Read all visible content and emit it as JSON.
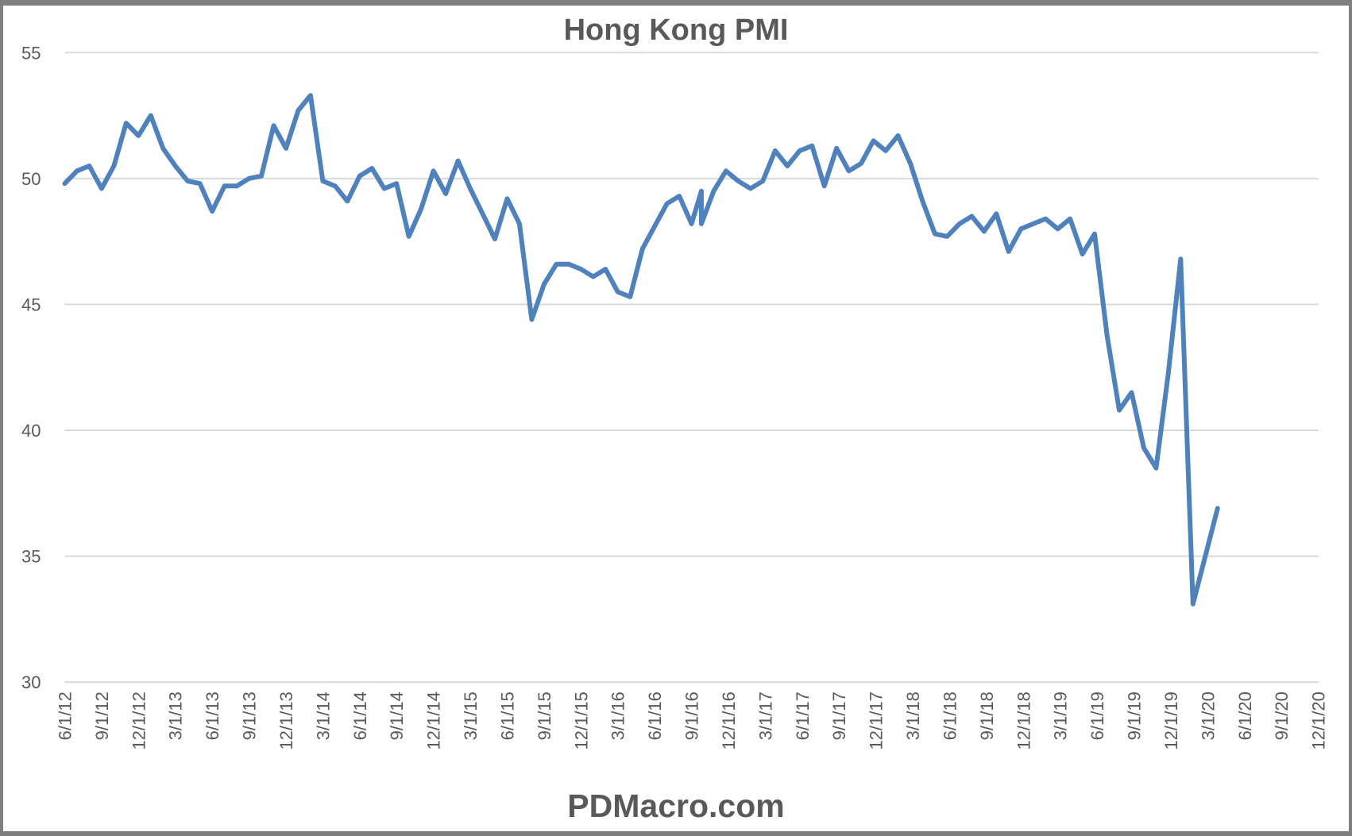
{
  "chart_data": {
    "type": "line",
    "title": "Hong Kong PMI",
    "xlabel": "",
    "ylabel": "",
    "ylim": [
      30,
      55
    ],
    "yticks": [
      30,
      35,
      40,
      45,
      50,
      55
    ],
    "grid": true,
    "legend": null,
    "line_color": "#4f81bd",
    "xtick_labels": [
      "6/1/12",
      "9/1/12",
      "12/1/12",
      "3/1/13",
      "6/1/13",
      "9/1/13",
      "12/1/13",
      "3/1/14",
      "6/1/14",
      "9/1/14",
      "12/1/14",
      "3/1/15",
      "6/1/15",
      "9/1/15",
      "12/1/15",
      "3/1/16",
      "6/1/16",
      "9/1/16",
      "12/1/16",
      "3/1/17",
      "6/1/17",
      "9/1/17",
      "12/1/17",
      "3/1/18",
      "6/1/18",
      "9/1/18",
      "12/1/18",
      "3/1/19",
      "6/1/19",
      "9/1/19",
      "12/1/19",
      "3/1/20",
      "6/1/20",
      "9/1/20",
      "12/1/20"
    ],
    "xlim_months": [
      0,
      102
    ],
    "series": [
      {
        "name": "Hong Kong PMI",
        "points": [
          [
            0,
            49.8
          ],
          [
            1,
            50.3
          ],
          [
            2,
            50.5
          ],
          [
            3,
            49.6
          ],
          [
            4,
            50.5
          ],
          [
            5,
            52.2
          ],
          [
            6,
            51.7
          ],
          [
            7,
            52.5
          ],
          [
            8,
            51.2
          ],
          [
            9,
            50.5
          ],
          [
            10,
            49.9
          ],
          [
            11,
            49.8
          ],
          [
            12,
            48.7
          ],
          [
            13,
            49.7
          ],
          [
            14,
            49.7
          ],
          [
            15,
            50.0
          ],
          [
            16,
            50.1
          ],
          [
            17,
            52.1
          ],
          [
            18,
            51.2
          ],
          [
            19,
            52.7
          ],
          [
            20,
            53.3
          ],
          [
            21,
            49.9
          ],
          [
            22,
            49.7
          ],
          [
            23,
            49.1
          ],
          [
            24,
            50.1
          ],
          [
            25,
            50.4
          ],
          [
            26,
            49.6
          ],
          [
            27,
            49.8
          ],
          [
            28,
            47.7
          ],
          [
            29,
            48.8
          ],
          [
            30,
            50.3
          ],
          [
            31,
            49.4
          ],
          [
            32,
            50.7
          ],
          [
            33,
            49.6
          ],
          [
            34,
            48.6
          ],
          [
            35,
            47.6
          ],
          [
            36,
            49.2
          ],
          [
            37,
            48.2
          ],
          [
            38,
            44.4
          ],
          [
            39,
            45.8
          ],
          [
            40,
            46.6
          ],
          [
            41,
            46.6
          ],
          [
            42,
            46.4
          ],
          [
            43,
            46.1
          ],
          [
            44,
            46.4
          ],
          [
            45,
            45.5
          ],
          [
            46,
            45.3
          ],
          [
            47,
            47.2
          ],
          [
            48,
            48.1
          ],
          [
            49,
            49.0
          ],
          [
            50,
            49.3
          ],
          [
            51,
            48.2
          ],
          [
            51.8,
            49.5
          ],
          [
            51.8,
            48.2
          ],
          [
            52.8,
            49.5
          ],
          [
            53.8,
            50.3
          ],
          [
            54.8,
            49.9
          ],
          [
            55.8,
            49.6
          ],
          [
            56.8,
            49.9
          ],
          [
            57.8,
            51.1
          ],
          [
            58.8,
            50.5
          ],
          [
            59.8,
            51.1
          ],
          [
            60.8,
            51.3
          ],
          [
            61.8,
            49.7
          ],
          [
            62.8,
            51.2
          ],
          [
            63.8,
            50.3
          ],
          [
            64.8,
            50.6
          ],
          [
            65.8,
            51.5
          ],
          [
            66.8,
            51.1
          ],
          [
            67.8,
            51.7
          ],
          [
            68.8,
            50.6
          ],
          [
            69.8,
            49.1
          ],
          [
            70.8,
            47.8
          ],
          [
            71.8,
            47.7
          ],
          [
            72.8,
            48.2
          ],
          [
            73.8,
            48.5
          ],
          [
            74.8,
            47.9
          ],
          [
            75.8,
            48.6
          ],
          [
            76.8,
            47.1
          ],
          [
            77.8,
            48.0
          ],
          [
            78.8,
            48.2
          ],
          [
            79.8,
            48.4
          ],
          [
            80.8,
            48.0
          ],
          [
            81.8,
            48.4
          ],
          [
            82.8,
            47.0
          ],
          [
            83.8,
            47.8
          ],
          [
            84.8,
            43.8
          ],
          [
            85.8,
            40.8
          ],
          [
            86.8,
            41.5
          ],
          [
            87.8,
            39.3
          ],
          [
            88.8,
            38.5
          ],
          [
            89.8,
            42.3
          ],
          [
            90.8,
            46.8
          ],
          [
            91.8,
            33.1
          ],
          [
            92.8,
            35.0
          ],
          [
            93.8,
            36.9
          ]
        ]
      }
    ]
  },
  "footer": "PDMacro.com"
}
